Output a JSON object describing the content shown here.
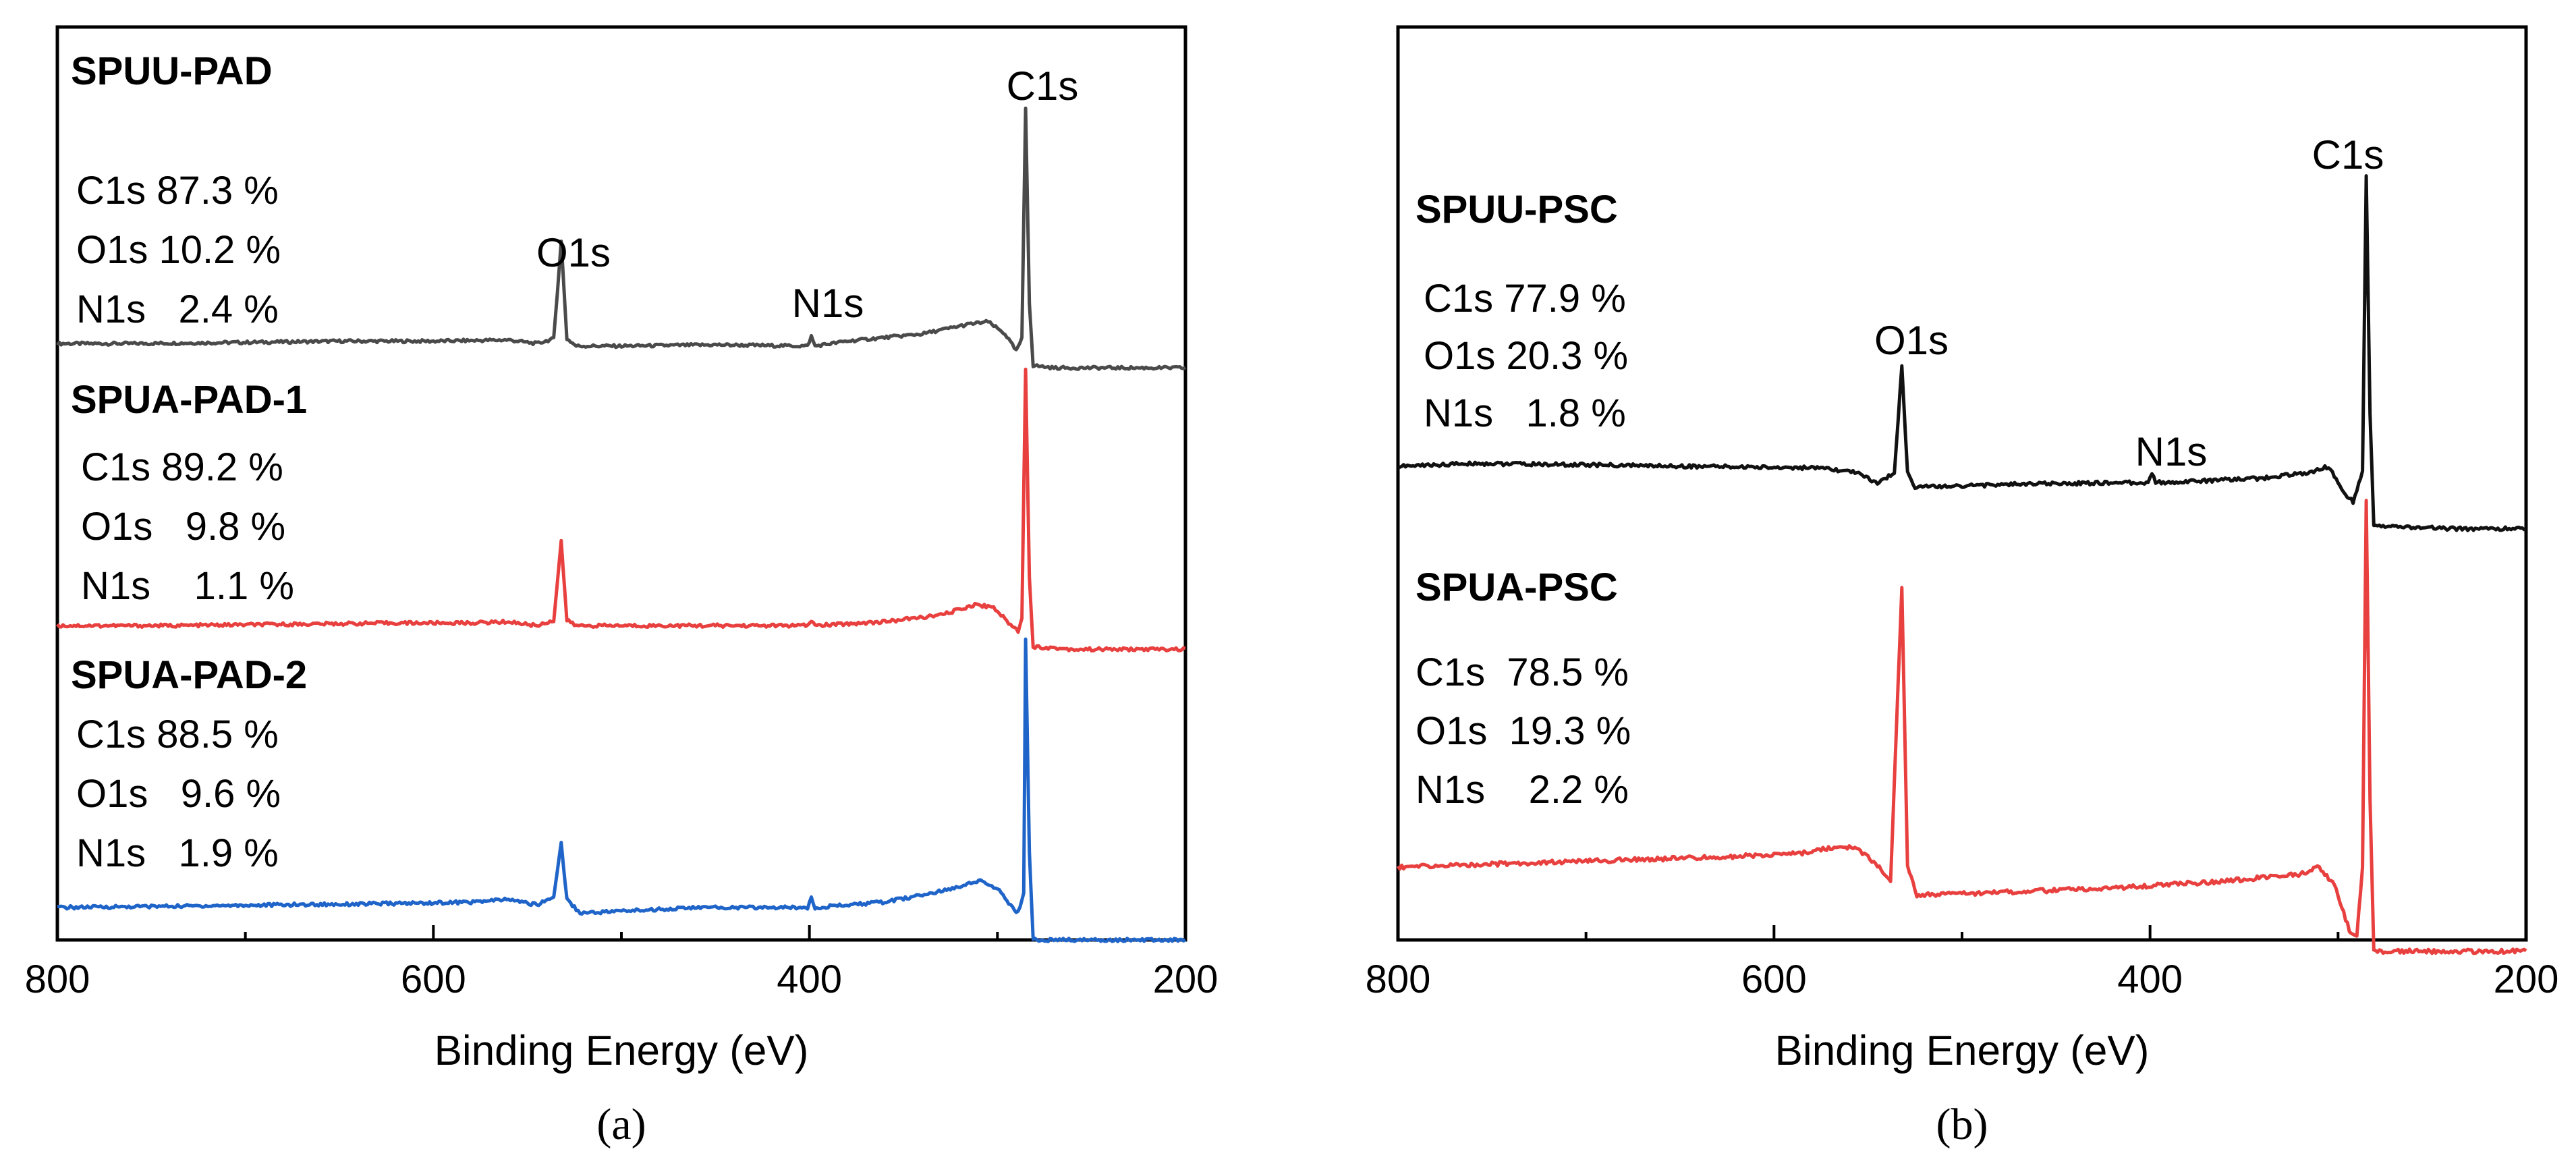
{
  "chart_data": [
    {
      "panel_label": "(a)",
      "type": "line",
      "title": "",
      "xlabel": "Binding Energy (eV)",
      "ylabel": "",
      "xlim": [
        800,
        200
      ],
      "x_ticks": [
        800,
        600,
        400,
        200
      ],
      "grid": false,
      "peak_labels": [
        "C1s",
        "O1s",
        "N1s"
      ],
      "series": [
        {
          "name": "SPUU-PAD",
          "color": "#4a4a4a",
          "composition": [
            "C1s 87.3 %",
            "O1s 10.2 %",
            "N1s   2.4 %"
          ],
          "points": [
            [
              800,
              0.03
            ],
            [
              760,
              0.03
            ],
            [
              700,
              0.035
            ],
            [
              650,
              0.04
            ],
            [
              600,
              0.04
            ],
            [
              560,
              0.045
            ],
            [
              545,
              0.03
            ],
            [
              536,
              0.05
            ],
            [
              532,
              0.45
            ],
            [
              529,
              0.05
            ],
            [
              524,
              0.02
            ],
            [
              500,
              0.02
            ],
            [
              450,
              0.025
            ],
            [
              401,
              0.02
            ],
            [
              399,
              0.06
            ],
            [
              397,
              0.02
            ],
            [
              380,
              0.04
            ],
            [
              340,
              0.07
            ],
            [
              315,
              0.11
            ],
            [
              305,
              0.12
            ],
            [
              296,
              0.07
            ],
            [
              290,
              0.0
            ],
            [
              287,
              0.05
            ],
            [
              285,
              1.0
            ],
            [
              283,
              0.2
            ],
            [
              281,
              -0.06
            ],
            [
              270,
              -0.07
            ],
            [
              240,
              -0.07
            ],
            [
              200,
              -0.07
            ]
          ]
        },
        {
          "name": "SPUA-PAD-1",
          "color": "#e8403f",
          "composition": [
            "C1s 89.2 %",
            "O1s   9.8 %",
            "N1s    1.1 %"
          ],
          "points": [
            [
              800,
              0.02
            ],
            [
              740,
              0.02
            ],
            [
              680,
              0.025
            ],
            [
              620,
              0.03
            ],
            [
              580,
              0.03
            ],
            [
              560,
              0.035
            ],
            [
              545,
              0.02
            ],
            [
              536,
              0.04
            ],
            [
              532,
              0.34
            ],
            [
              529,
              0.04
            ],
            [
              524,
              0.02
            ],
            [
              460,
              0.02
            ],
            [
              401,
              0.02
            ],
            [
              399,
              0.04
            ],
            [
              397,
              0.02
            ],
            [
              360,
              0.035
            ],
            [
              330,
              0.06
            ],
            [
              312,
              0.1
            ],
            [
              302,
              0.09
            ],
            [
              294,
              0.03
            ],
            [
              289,
              0.0
            ],
            [
              287,
              0.05
            ],
            [
              285,
              1.0
            ],
            [
              283,
              0.2
            ],
            [
              281,
              -0.06
            ],
            [
              260,
              -0.07
            ],
            [
              200,
              -0.07
            ]
          ]
        },
        {
          "name": "SPUA-PAD-2",
          "color": "#1f64c8",
          "composition": [
            "C1s 88.5 %",
            "O1s   9.6 %",
            "N1s   1.9 %"
          ],
          "points": [
            [
              800,
              0.0
            ],
            [
              740,
              0.005
            ],
            [
              680,
              0.01
            ],
            [
              620,
              0.015
            ],
            [
              580,
              0.02
            ],
            [
              560,
              0.03
            ],
            [
              545,
              0.01
            ],
            [
              536,
              0.04
            ],
            [
              532,
              0.24
            ],
            [
              529,
              0.03
            ],
            [
              522,
              -0.02
            ],
            [
              460,
              0.0
            ],
            [
              401,
              0.0
            ],
            [
              399,
              0.04
            ],
            [
              397,
              0.0
            ],
            [
              360,
              0.02
            ],
            [
              330,
              0.06
            ],
            [
              310,
              0.1
            ],
            [
              300,
              0.07
            ],
            [
              290,
              -0.02
            ],
            [
              288,
              0.0
            ],
            [
              286,
              0.05
            ],
            [
              285,
              1.0
            ],
            [
              283,
              0.2
            ],
            [
              281,
              -0.12
            ],
            [
              260,
              -0.12
            ],
            [
              200,
              -0.12
            ]
          ]
        }
      ]
    },
    {
      "panel_label": "(b)",
      "type": "line",
      "title": "",
      "xlabel": "Binding Energy (eV)",
      "ylabel": "",
      "xlim": [
        800,
        200
      ],
      "x_ticks": [
        800,
        600,
        400,
        200
      ],
      "grid": false,
      "peak_labels": [
        "C1s",
        "O1s",
        "N1s"
      ],
      "series": [
        {
          "name": "SPUU-PSC",
          "color": "#111111",
          "composition": [
            "C1s 77.9 %",
            "O1s 20.3 %",
            "N1s   1.8 %"
          ],
          "points": [
            [
              800,
              0.02
            ],
            [
              760,
              0.03
            ],
            [
              700,
              0.025
            ],
            [
              640,
              0.02
            ],
            [
              580,
              0.015
            ],
            [
              555,
              0.0
            ],
            [
              545,
              -0.04
            ],
            [
              536,
              0.0
            ],
            [
              532,
              0.36
            ],
            [
              529,
              0.0
            ],
            [
              525,
              -0.05
            ],
            [
              470,
              -0.04
            ],
            [
              420,
              -0.035
            ],
            [
              401,
              -0.035
            ],
            [
              399,
              0.0
            ],
            [
              397,
              -0.035
            ],
            [
              340,
              -0.02
            ],
            [
              315,
              0.0
            ],
            [
              305,
              0.02
            ],
            [
              298,
              -0.06
            ],
            [
              292,
              -0.1
            ],
            [
              287,
              0.0
            ],
            [
              285,
              1.0
            ],
            [
              283,
              0.2
            ],
            [
              281,
              -0.18
            ],
            [
              240,
              -0.19
            ],
            [
              200,
              -0.19
            ]
          ]
        },
        {
          "name": "SPUA-PSC",
          "color": "#e8403f",
          "composition": [
            "C1s  78.5 %",
            "O1s  19.3 %",
            "N1s    2.2 %"
          ],
          "points": [
            [
              800,
              0.0
            ],
            [
              740,
              0.01
            ],
            [
              680,
              0.02
            ],
            [
              620,
              0.03
            ],
            [
              585,
              0.04
            ],
            [
              565,
              0.06
            ],
            [
              555,
              0.05
            ],
            [
              544,
              0.0
            ],
            [
              538,
              -0.04
            ],
            [
              532,
              0.8
            ],
            [
              529,
              0.0
            ],
            [
              524,
              -0.08
            ],
            [
              470,
              -0.07
            ],
            [
              420,
              -0.06
            ],
            [
              360,
              -0.04
            ],
            [
              320,
              -0.02
            ],
            [
              310,
              0.0
            ],
            [
              302,
              -0.05
            ],
            [
              294,
              -0.18
            ],
            [
              290,
              -0.2
            ],
            [
              287,
              0.0
            ],
            [
              285,
              1.05
            ],
            [
              283,
              0.2
            ],
            [
              281,
              -0.24
            ],
            [
              240,
              -0.24
            ],
            [
              200,
              -0.24
            ]
          ]
        }
      ]
    }
  ]
}
